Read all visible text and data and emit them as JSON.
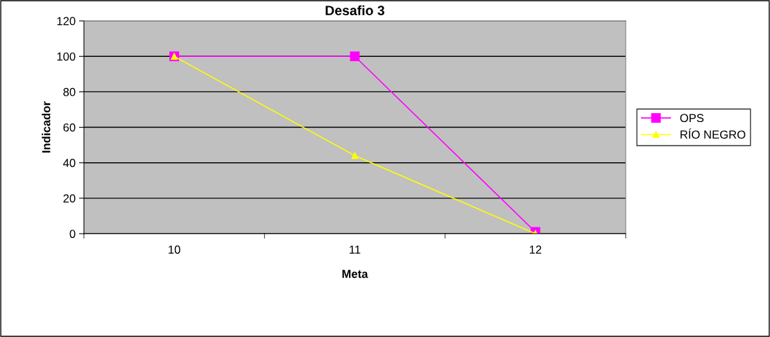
{
  "chart_data": {
    "type": "line",
    "title": "Desafio 3",
    "xlabel": "Meta",
    "ylabel": "Indicador",
    "categories": [
      "10",
      "11",
      "12"
    ],
    "series": [
      {
        "name": "OPS",
        "color": "#ff00ff",
        "values": [
          100,
          100,
          1
        ],
        "marker": "square"
      },
      {
        "name": "RÍO NEGRO",
        "color": "#ffff00",
        "values": [
          100,
          44,
          0
        ],
        "marker": "triangle"
      }
    ],
    "ylim": [
      0,
      120
    ],
    "yticks": [
      0,
      20,
      40,
      60,
      80,
      100,
      120
    ],
    "grid": "y",
    "legend": "right"
  }
}
